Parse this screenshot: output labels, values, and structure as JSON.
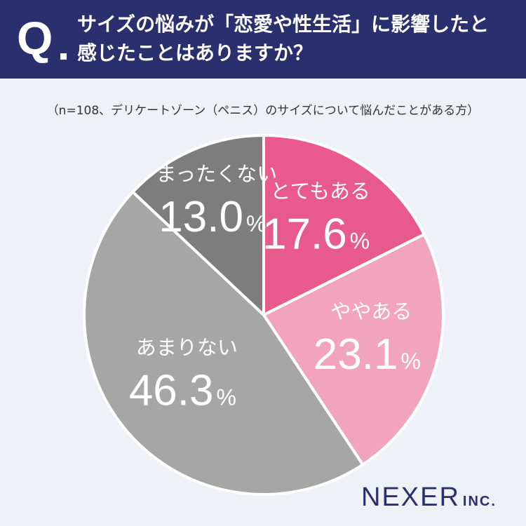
{
  "header": {
    "q_mark": "Q",
    "question_line1": "サイズの悩みが「恋愛や性生活」に影響したと",
    "question_line2": "感じたことはありますか？"
  },
  "subtitle": "（n=108、デリケートゾーン（ペニス）のサイズについて悩んだことがある方）",
  "brand": {
    "name": "NEXER",
    "suffix": "INC."
  },
  "colors": {
    "header_bg": "#2a2f6e",
    "background": "#eef2f6"
  },
  "chart_data": {
    "type": "pie",
    "start_angle_deg": 0,
    "direction": "clockwise",
    "percent_sign": "%",
    "slices": [
      {
        "label": "とてもある",
        "value": 17.6,
        "value_text": "17.6",
        "color": "#e85a8c",
        "text_color": "#ffffff"
      },
      {
        "label": "ややある",
        "value": 23.1,
        "value_text": "23.1",
        "color": "#f2a3bd",
        "text_color": "#ffffff"
      },
      {
        "label": "あまりない",
        "value": 46.3,
        "value_text": "46.3",
        "color": "#a6a6a6",
        "text_color": "#ffffff"
      },
      {
        "label": "まったくない",
        "value": 13.0,
        "value_text": "13.0",
        "color": "#7d7d7d",
        "text_color": "#ffffff"
      }
    ]
  }
}
